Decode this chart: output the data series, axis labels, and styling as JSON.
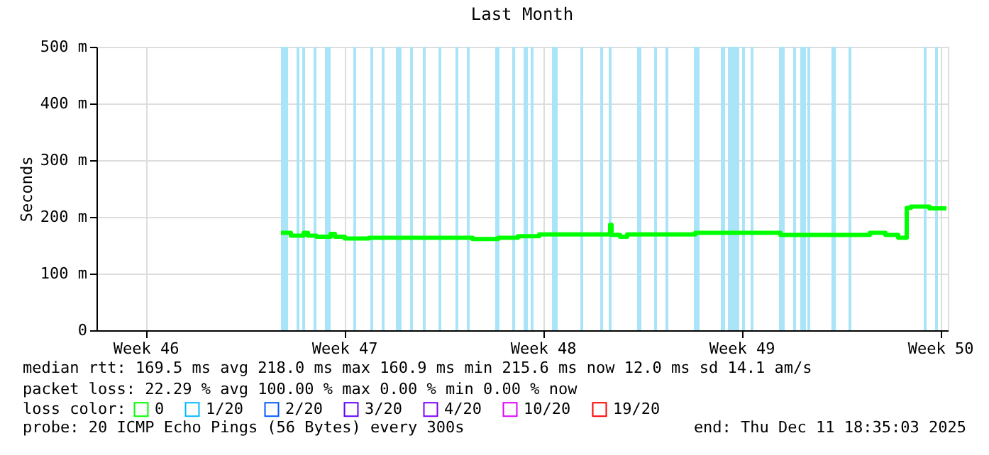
{
  "chart_data": {
    "type": "step",
    "title": "Last Month",
    "ylabel": "Seconds",
    "legend_title": "loss color:",
    "legend": "bottom",
    "grid": true,
    "line_style": "solid",
    "marker": "none",
    "xlim": [
      "2025-11-11T18:35",
      "2025-12-11T18:35"
    ],
    "xticks": [
      {
        "value": "2025-11-13T12:00",
        "label": "Week 46"
      },
      {
        "value": "2025-11-20T12:00",
        "label": "Week 47"
      },
      {
        "value": "2025-11-27T12:00",
        "label": "Week 48"
      },
      {
        "value": "2025-12-04T12:00",
        "label": "Week 49"
      },
      {
        "value": "2025-12-11T12:00",
        "label": "Week 50"
      }
    ],
    "ylim": [
      0,
      500
    ],
    "yticks": [
      0,
      {
        "value": 100,
        "label": "100 m"
      },
      {
        "value": 200,
        "label": "200 m"
      },
      {
        "value": 300,
        "label": "300 m"
      },
      {
        "value": 400,
        "label": "400 m"
      },
      {
        "value": 500,
        "label": "500 m"
      }
    ],
    "x": [
      "2025-11-18T06:36",
      "2025-11-18T15:00",
      "2025-11-19T01:48",
      "2025-11-19T05:24",
      "2025-11-19T12:36",
      "2025-11-20T00:36",
      "2025-11-20T04:12",
      "2025-11-20T12:36",
      "2025-11-21T09:00",
      "2025-11-24T21:00",
      "2025-11-25T00:36",
      "2025-11-25T22:12",
      "2025-11-26T15:00",
      "2025-11-27T09:00",
      "2025-11-29T18:36",
      "2025-11-29T21:00",
      "2025-11-29T22:12",
      "2025-11-30T05:24",
      "2025-11-30T11:24",
      "2025-12-02T21:00",
      "2025-12-05T21:00",
      "2025-12-09T00:36",
      "2025-12-09T13:48",
      "2025-12-10T00:36",
      "2025-12-10T07:48",
      "2025-12-10T11:24",
      "2025-12-11T03:00",
      "2025-12-11T17:24"
    ],
    "series": [
      {
        "name": "0",
        "color": "#00ff00",
        "values": [
          172,
          167,
          172,
          167,
          165,
          170,
          165,
          162,
          163,
          163,
          161,
          163,
          166,
          169,
          169,
          186,
          168,
          165,
          169,
          172,
          168,
          172,
          168,
          163,
          216,
          218,
          215,
          215
        ]
      },
      {
        "name": "1/20",
        "color": "#00b8ff",
        "values": [
          null,
          null,
          null,
          null,
          null,
          null,
          null,
          null,
          null,
          null,
          null,
          null,
          null,
          null,
          null,
          null,
          null,
          null,
          null,
          null,
          null,
          null,
          null,
          null,
          null,
          null,
          null,
          null
        ]
      },
      {
        "name": "2/20",
        "color": "#0059ff",
        "values": [
          null,
          null,
          null,
          null,
          null,
          null,
          null,
          null,
          null,
          null,
          null,
          null,
          null,
          null,
          null,
          null,
          null,
          null,
          null,
          null,
          null,
          null,
          null,
          null,
          null,
          null,
          null,
          null
        ]
      },
      {
        "name": "3/20",
        "color": "#5e00ff",
        "values": [
          null,
          null,
          null,
          null,
          null,
          null,
          null,
          null,
          null,
          null,
          null,
          null,
          null,
          null,
          null,
          null,
          null,
          null,
          null,
          null,
          null,
          null,
          null,
          null,
          null,
          null,
          null,
          null
        ]
      },
      {
        "name": "4/20",
        "color": "#7e00ff",
        "values": [
          null,
          null,
          null,
          null,
          null,
          null,
          null,
          null,
          null,
          null,
          null,
          null,
          null,
          null,
          null,
          null,
          null,
          null,
          null,
          null,
          null,
          null,
          null,
          null,
          null,
          null,
          null,
          null
        ]
      },
      {
        "name": "10/20",
        "color": "#dd00ff",
        "values": [
          null,
          null,
          null,
          null,
          null,
          null,
          null,
          null,
          null,
          null,
          null,
          null,
          null,
          null,
          null,
          null,
          null,
          null,
          null,
          null,
          null,
          null,
          null,
          null,
          null,
          null,
          null,
          null
        ]
      },
      {
        "name": "19/20",
        "color": "#ff0000",
        "values": [
          null,
          null,
          null,
          null,
          null,
          null,
          null,
          null,
          null,
          null,
          null,
          null,
          null,
          null,
          null,
          null,
          null,
          null,
          null,
          null,
          null,
          null,
          null,
          null,
          null,
          null,
          null,
          null
        ]
      }
    ],
    "bands": [
      {
        "axis": "x",
        "from": "2025-11-18T06:36",
        "to": "2025-11-18T12:36",
        "color": "#a9e4f9"
      },
      {
        "axis": "x",
        "from": "2025-11-18T19:48",
        "to": "2025-11-18T22:12",
        "color": "#a9e4f9"
      },
      {
        "axis": "x",
        "from": "2025-11-19T00:36",
        "to": "2025-11-19T03:00",
        "color": "#a9e4f9"
      },
      {
        "axis": "x",
        "from": "2025-11-19T10:12",
        "to": "2025-11-19T12:36",
        "color": "#a9e4f9"
      },
      {
        "axis": "x",
        "from": "2025-11-19T19:48",
        "to": "2025-11-20T00:36",
        "color": "#a9e4f9"
      },
      {
        "axis": "x",
        "from": "2025-11-20T19:48",
        "to": "2025-11-20T22:12",
        "color": "#a9e4f9"
      },
      {
        "axis": "x",
        "from": "2025-11-21T10:12",
        "to": "2025-11-21T12:36",
        "color": "#a9e4f9"
      },
      {
        "axis": "x",
        "from": "2025-11-21T19:48",
        "to": "2025-11-21T22:12",
        "color": "#a9e4f9"
      },
      {
        "axis": "x",
        "from": "2025-11-22T07:48",
        "to": "2025-11-22T12:36",
        "color": "#a9e4f9"
      },
      {
        "axis": "x",
        "from": "2025-11-22T19:48",
        "to": "2025-11-22T22:12",
        "color": "#a9e4f9"
      },
      {
        "axis": "x",
        "from": "2025-11-23T06:36",
        "to": "2025-11-23T09:00",
        "color": "#a9e4f9"
      },
      {
        "axis": "x",
        "from": "2025-11-23T19:48",
        "to": "2025-11-23T22:12",
        "color": "#a9e4f9"
      },
      {
        "axis": "x",
        "from": "2025-11-24T10:12",
        "to": "2025-11-24T12:36",
        "color": "#a9e4f9"
      },
      {
        "axis": "x",
        "from": "2025-11-24T19:48",
        "to": "2025-11-24T22:12",
        "color": "#a9e4f9"
      },
      {
        "axis": "x",
        "from": "2025-11-25T19:48",
        "to": "2025-11-25T23:24",
        "color": "#a9e4f9"
      },
      {
        "axis": "x",
        "from": "2025-11-26T10:12",
        "to": "2025-11-26T12:36",
        "color": "#a9e4f9"
      },
      {
        "axis": "x",
        "from": "2025-11-26T19:48",
        "to": "2025-11-26T23:24",
        "color": "#a9e4f9"
      },
      {
        "axis": "x",
        "from": "2025-11-27T01:48",
        "to": "2025-11-27T04:12",
        "color": "#a9e4f9"
      },
      {
        "axis": "x",
        "from": "2025-11-27T19:48",
        "to": "2025-11-28T00:36",
        "color": "#a9e4f9"
      },
      {
        "axis": "x",
        "from": "2025-11-28T19:48",
        "to": "2025-11-28T22:12",
        "color": "#a9e4f9"
      },
      {
        "axis": "x",
        "from": "2025-11-29T12:36",
        "to": "2025-11-29T15:00",
        "color": "#a9e4f9"
      },
      {
        "axis": "x",
        "from": "2025-11-29T19:48",
        "to": "2025-11-29T22:12",
        "color": "#a9e4f9"
      },
      {
        "axis": "x",
        "from": "2025-11-30T19:48",
        "to": "2025-11-30T23:24",
        "color": "#a9e4f9"
      },
      {
        "axis": "x",
        "from": "2025-12-01T10:12",
        "to": "2025-12-01T12:36",
        "color": "#a9e4f9"
      },
      {
        "axis": "x",
        "from": "2025-12-01T19:48",
        "to": "2025-12-01T22:12",
        "color": "#a9e4f9"
      },
      {
        "axis": "x",
        "from": "2025-12-02T19:48",
        "to": "2025-12-03T00:36",
        "color": "#a9e4f9"
      },
      {
        "axis": "x",
        "from": "2025-12-03T18:36",
        "to": "2025-12-03T22:12",
        "color": "#a9e4f9"
      },
      {
        "axis": "x",
        "from": "2025-12-04T00:36",
        "to": "2025-12-04T10:12",
        "color": "#a9e4f9"
      },
      {
        "axis": "x",
        "from": "2025-12-04T12:36",
        "to": "2025-12-04T15:00",
        "color": "#a9e4f9"
      },
      {
        "axis": "x",
        "from": "2025-12-04T19:48",
        "to": "2025-12-04T22:12",
        "color": "#a9e4f9"
      },
      {
        "axis": "x",
        "from": "2025-12-05T19:48",
        "to": "2025-12-06T00:36",
        "color": "#a9e4f9"
      },
      {
        "axis": "x",
        "from": "2025-12-06T07:48",
        "to": "2025-12-06T10:12",
        "color": "#a9e4f9"
      },
      {
        "axis": "x",
        "from": "2025-12-06T13:48",
        "to": "2025-12-06T18:36",
        "color": "#a9e4f9"
      },
      {
        "axis": "x",
        "from": "2025-12-06T19:48",
        "to": "2025-12-06T22:12",
        "color": "#a9e4f9"
      },
      {
        "axis": "x",
        "from": "2025-12-07T16:12",
        "to": "2025-12-07T19:48",
        "color": "#a9e4f9"
      },
      {
        "axis": "x",
        "from": "2025-12-08T06:36",
        "to": "2025-12-08T09:00",
        "color": "#a9e4f9"
      },
      {
        "axis": "x",
        "from": "2025-12-10T22:12",
        "to": "2025-12-11T00:36",
        "color": "#a9e4f9"
      },
      {
        "axis": "x",
        "from": "2025-12-11T07:48",
        "to": "2025-12-11T10:12",
        "color": "#a9e4f9"
      }
    ],
    "annotations": [
      "median rtt:  169.5 ms avg  218.0 ms max  160.9 ms min  215.6 ms now  12.0 ms sd  14.1   am/s",
      "packet loss: 22.29 % avg  100.00 % max  0.00 % min  0.00 % now",
      "probe:       20 ICMP Echo Pings (56 Bytes) every 300s",
      "end: Thu Dec 11 18:35:03 2025"
    ]
  }
}
